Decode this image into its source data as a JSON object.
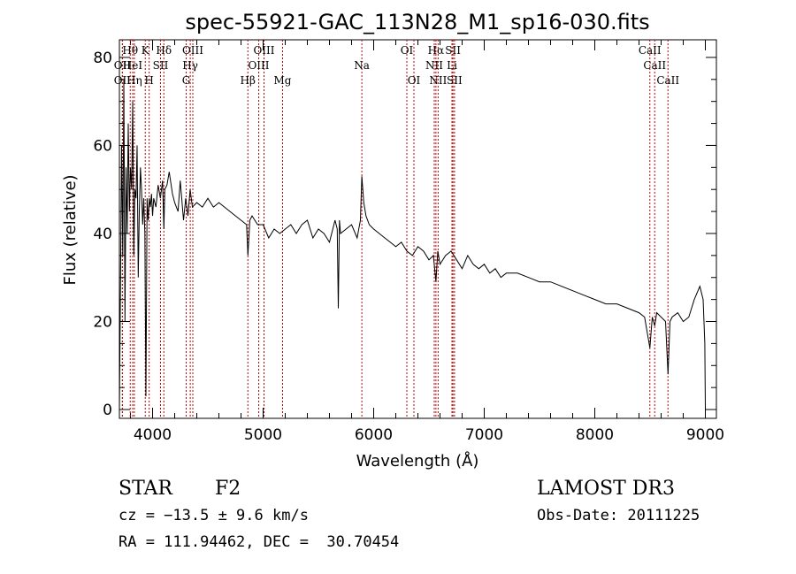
{
  "chart_data": {
    "type": "line",
    "title": "spec-55921-GAC_113N28_M1_sp16-030.fits",
    "xlabel": "Wavelength (Å)",
    "ylabel": "Flux (relative)",
    "xlim": [
      3700,
      9100
    ],
    "ylim": [
      -2,
      84
    ],
    "xticks": [
      4000,
      5000,
      6000,
      7000,
      8000,
      9000
    ],
    "yticks": [
      0,
      20,
      40,
      60,
      80
    ],
    "grid": false,
    "series": [
      {
        "x": [
          3700,
          3710,
          3720,
          3730,
          3740,
          3750,
          3760,
          3770,
          3780,
          3790,
          3800,
          3810,
          3820,
          3830,
          3840,
          3850,
          3860,
          3870,
          3880,
          3890,
          3900,
          3910,
          3920,
          3930,
          3940,
          3950,
          3960,
          3970,
          3980,
          3990,
          4000,
          4010,
          4030,
          4050,
          4070,
          4090,
          4102,
          4110,
          4130,
          4150,
          4180,
          4200,
          4230,
          4250,
          4280,
          4300,
          4320,
          4340,
          4360,
          4400,
          4450,
          4500,
          4550,
          4600,
          4650,
          4700,
          4750,
          4800,
          4850,
          4862,
          4880,
          4900,
          4950,
          5000,
          5050,
          5100,
          5150,
          5200,
          5250,
          5300,
          5350,
          5400,
          5450,
          5500,
          5550,
          5600,
          5650,
          5670,
          5680,
          5690,
          5700,
          5750,
          5800,
          5850,
          5880,
          5893,
          5910,
          5930,
          5960,
          6000,
          6050,
          6100,
          6150,
          6200,
          6250,
          6300,
          6350,
          6400,
          6450,
          6500,
          6540,
          6563,
          6580,
          6600,
          6650,
          6700,
          6750,
          6800,
          6850,
          6900,
          6950,
          7000,
          7050,
          7100,
          7150,
          7200,
          7300,
          7400,
          7500,
          7600,
          7700,
          7800,
          7900,
          8000,
          8100,
          8200,
          8300,
          8400,
          8450,
          8498,
          8520,
          8542,
          8560,
          8600,
          8640,
          8662,
          8680,
          8700,
          8750,
          8800,
          8850,
          8900,
          8950,
          8980,
          8995,
          9000
        ],
        "values": [
          0,
          30,
          60,
          35,
          75,
          20,
          55,
          40,
          65,
          45,
          55,
          50,
          70,
          35,
          50,
          48,
          60,
          30,
          45,
          55,
          50,
          42,
          48,
          40,
          3,
          48,
          43,
          48,
          46,
          49,
          44,
          48,
          46,
          51,
          48,
          52,
          41,
          50,
          51,
          54,
          49,
          47,
          45,
          52,
          43,
          48,
          44,
          50,
          46,
          47,
          46,
          48,
          46,
          47,
          46,
          45,
          44,
          43,
          42,
          35,
          43,
          44,
          42,
          42,
          39,
          41,
          40,
          41,
          42,
          40,
          42,
          43,
          39,
          41,
          40,
          38,
          43,
          41,
          23,
          43,
          40,
          41,
          42,
          39,
          43,
          53,
          47,
          44,
          42,
          41,
          40,
          39,
          38,
          37,
          38,
          36,
          35,
          37,
          36,
          34,
          35,
          29,
          36,
          33,
          35,
          36,
          34,
          32,
          35,
          33,
          32,
          33,
          31,
          32,
          30,
          31,
          31,
          30,
          29,
          29,
          28,
          27,
          26,
          25,
          24,
          24,
          23,
          22,
          21,
          14,
          21,
          19,
          22,
          21,
          20,
          8,
          20,
          21,
          22,
          20,
          21,
          25,
          28,
          25,
          15,
          0
        ]
      }
    ],
    "annotations": [
      {
        "label": "OII",
        "x": 3727,
        "row": 2
      },
      {
        "label": "OII",
        "x": 3727,
        "row": 3
      },
      {
        "label": "Hθ",
        "x": 3798,
        "row": 1
      },
      {
        "label": "HeI",
        "x": 3820,
        "row": 2
      },
      {
        "label": "Hη",
        "x": 3835,
        "row": 3
      },
      {
        "label": "K",
        "x": 3934,
        "row": 1
      },
      {
        "label": "H",
        "x": 3969,
        "row": 3
      },
      {
        "label": "SII",
        "x": 4072,
        "row": 2
      },
      {
        "label": "Hδ",
        "x": 4102,
        "row": 1
      },
      {
        "label": "G",
        "x": 4304,
        "row": 3
      },
      {
        "label": "Hγ",
        "x": 4341,
        "row": 2
      },
      {
        "label": "OIII",
        "x": 4364,
        "row": 1
      },
      {
        "label": "Hβ",
        "x": 4862,
        "row": 3
      },
      {
        "label": "OIII",
        "x": 4960,
        "row": 2
      },
      {
        "label": "OIII",
        "x": 5008,
        "row": 1
      },
      {
        "label": "Mg",
        "x": 5176,
        "row": 3
      },
      {
        "label": "Na",
        "x": 5893,
        "row": 2
      },
      {
        "label": "OI",
        "x": 6300,
        "row": 1
      },
      {
        "label": "OI",
        "x": 6364,
        "row": 3
      },
      {
        "label": "NII",
        "x": 6548,
        "row": 2
      },
      {
        "label": "Hα",
        "x": 6563,
        "row": 1
      },
      {
        "label": "NII",
        "x": 6583,
        "row": 3
      },
      {
        "label": "Li",
        "x": 6708,
        "row": 2
      },
      {
        "label": "SII",
        "x": 6717,
        "row": 1
      },
      {
        "label": "SII",
        "x": 6731,
        "row": 3
      },
      {
        "label": "CaII",
        "x": 8498,
        "row": 1
      },
      {
        "label": "CaII",
        "x": 8542,
        "row": 2
      },
      {
        "label": "CaII",
        "x": 8662,
        "row": 3
      }
    ]
  },
  "info": {
    "object_class": "STAR",
    "subclass": "F2",
    "redshift": "cz = −13.5 ± 9.6 km/s",
    "coords": "RA = 111.94462, DEC =  30.70454",
    "survey": "LAMOST DR3",
    "obs_date": "Obs-Date: 20111225"
  }
}
